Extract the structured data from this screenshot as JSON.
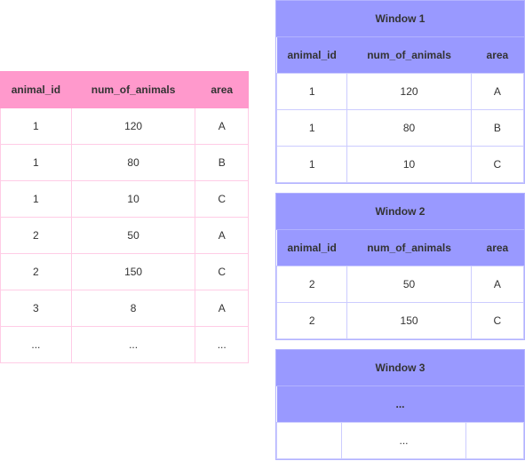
{
  "left_table": {
    "headers": [
      "animal_id",
      "num_of_animals",
      "area"
    ],
    "rows": [
      [
        "1",
        "120",
        "A"
      ],
      [
        "1",
        "80",
        "B"
      ],
      [
        "1",
        "10",
        "C"
      ],
      [
        "2",
        "50",
        "A"
      ],
      [
        "2",
        "150",
        "C"
      ],
      [
        "3",
        "8",
        "A"
      ],
      [
        "...",
        "...",
        "..."
      ]
    ],
    "header_bg": "#ff99cc",
    "border_color": "#ffcce6"
  },
  "windows": [
    {
      "title": "Window 1",
      "headers": [
        "animal_id",
        "num_of_animals",
        "area"
      ],
      "rows": [
        [
          "1",
          "120",
          "A"
        ],
        [
          "1",
          "80",
          "B"
        ],
        [
          "1",
          "10",
          "C"
        ]
      ]
    },
    {
      "title": "Window 2",
      "headers": [
        "animal_id",
        "num_of_animals",
        "area"
      ],
      "rows": [
        [
          "2",
          "50",
          "A"
        ],
        [
          "2",
          "150",
          "C"
        ]
      ]
    },
    {
      "title": "Window 3",
      "headers": [
        "..."
      ],
      "rows": [
        [
          "",
          "...",
          ""
        ]
      ],
      "single": true
    }
  ],
  "style": {
    "window_header_bg": "#9999ff",
    "window_border": "#ccccff"
  }
}
